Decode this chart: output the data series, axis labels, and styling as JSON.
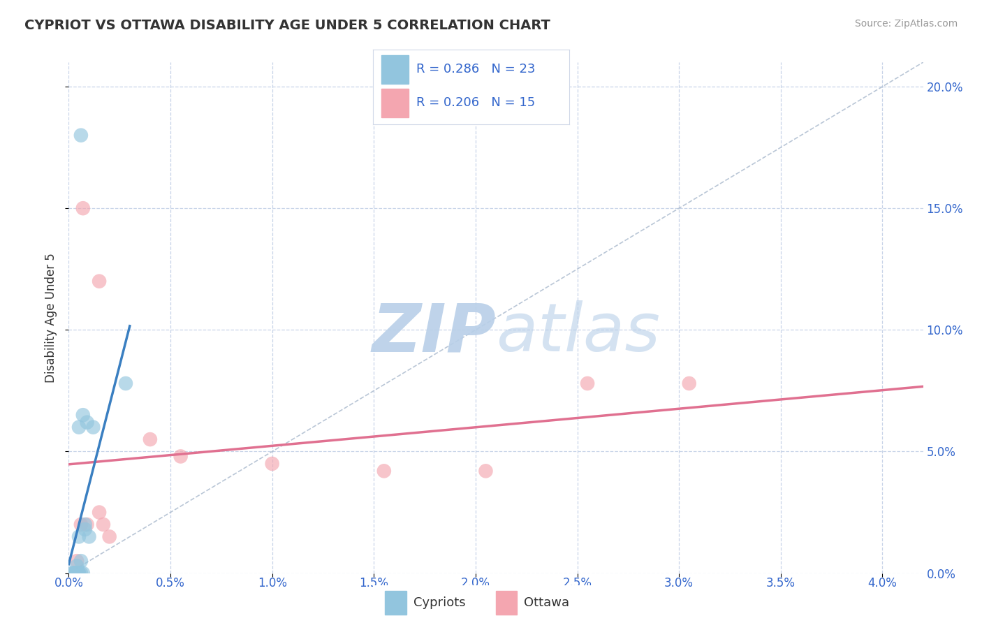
{
  "title": "CYPRIOT VS OTTAWA DISABILITY AGE UNDER 5 CORRELATION CHART",
  "source": "Source: ZipAtlas.com",
  "ylabel": "Disability Age Under 5",
  "x_tick_values": [
    0.0,
    0.5,
    1.0,
    1.5,
    2.0,
    2.5,
    3.0,
    3.5,
    4.0
  ],
  "y_tick_values": [
    0.0,
    5.0,
    10.0,
    15.0,
    20.0
  ],
  "xlim": [
    0.0,
    4.2
  ],
  "ylim": [
    0.0,
    21.0
  ],
  "legend_R_cypriot": "0.286",
  "legend_N_cypriot": "23",
  "legend_R_ottawa": "0.206",
  "legend_N_ottawa": "15",
  "cypriot_color": "#92c5de",
  "ottawa_color": "#f4a6b0",
  "cypriot_scatter": [
    [
      0.02,
      0.0
    ],
    [
      0.03,
      0.0
    ],
    [
      0.04,
      0.0
    ],
    [
      0.05,
      0.0
    ],
    [
      0.05,
      0.0
    ],
    [
      0.03,
      0.0
    ],
    [
      0.04,
      0.3
    ],
    [
      0.06,
      0.5
    ],
    [
      0.07,
      0.0
    ],
    [
      0.06,
      0.0
    ],
    [
      0.05,
      1.5
    ],
    [
      0.08,
      1.8
    ],
    [
      0.1,
      1.5
    ],
    [
      0.08,
      2.0
    ],
    [
      0.04,
      0.0
    ],
    [
      0.03,
      0.0
    ],
    [
      0.02,
      0.0
    ],
    [
      0.05,
      6.0
    ],
    [
      0.07,
      6.5
    ],
    [
      0.09,
      6.2
    ],
    [
      0.12,
      6.0
    ],
    [
      0.06,
      18.0
    ],
    [
      0.28,
      7.8
    ]
  ],
  "ottawa_scatter": [
    [
      0.04,
      0.5
    ],
    [
      0.06,
      2.0
    ],
    [
      0.09,
      2.0
    ],
    [
      0.15,
      2.5
    ],
    [
      0.17,
      2.0
    ],
    [
      0.2,
      1.5
    ],
    [
      0.07,
      15.0
    ],
    [
      0.15,
      12.0
    ],
    [
      0.4,
      5.5
    ],
    [
      0.55,
      4.8
    ],
    [
      1.0,
      4.5
    ],
    [
      1.55,
      4.2
    ],
    [
      2.05,
      4.2
    ],
    [
      2.55,
      7.8
    ],
    [
      3.05,
      7.8
    ]
  ],
  "background_color": "#ffffff",
  "grid_color": "#c8d4e8",
  "ref_line_color": "#a8b8cc",
  "cypriot_line_color": "#3a7fc1",
  "ottawa_line_color": "#e07090",
  "title_color": "#333333",
  "axis_label_color": "#3366cc",
  "source_color": "#999999",
  "legend_label_color": "#3366cc"
}
